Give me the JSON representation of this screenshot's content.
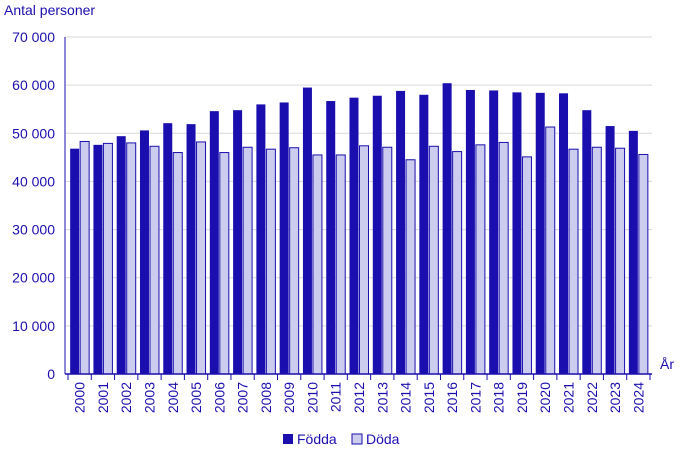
{
  "chart_data": {
    "type": "bar",
    "ylabel": "Antal personer",
    "xlabel": "År",
    "ylim": [
      0,
      70000
    ],
    "yticks": [
      0,
      10000,
      20000,
      30000,
      40000,
      50000,
      60000,
      70000
    ],
    "ytick_labels": [
      "0",
      "10 000",
      "20 000",
      "30 000",
      "40 000",
      "50 000",
      "60 000",
      "70 000"
    ],
    "grid": true,
    "legend_position": "bottom",
    "categories": [
      "2000",
      "2001",
      "2002",
      "2003",
      "2004",
      "2005",
      "2006",
      "2007",
      "2008",
      "2009",
      "2010",
      "2011",
      "2012",
      "2013",
      "2014",
      "2015",
      "2016",
      "2017",
      "2018",
      "2019",
      "2020",
      "2021",
      "2022",
      "2023",
      "2024"
    ],
    "series": [
      {
        "name": "Födda",
        "color": "#1a0fae",
        "values": [
          46800,
          47600,
          49400,
          50600,
          52100,
          51900,
          54600,
          54800,
          56000,
          56400,
          59500,
          56700,
          57400,
          57800,
          58800,
          58000,
          60400,
          59000,
          58900,
          58500,
          58400,
          58300,
          54800,
          51500,
          50500
        ]
      },
      {
        "name": "Döda",
        "color": "#ccccee",
        "values": [
          48300,
          47900,
          48000,
          47300,
          46000,
          48200,
          46000,
          47100,
          46700,
          47000,
          45500,
          45500,
          47400,
          47100,
          44500,
          47300,
          46200,
          47600,
          48100,
          45100,
          51300,
          46700,
          47100,
          46900,
          45600
        ]
      }
    ]
  }
}
